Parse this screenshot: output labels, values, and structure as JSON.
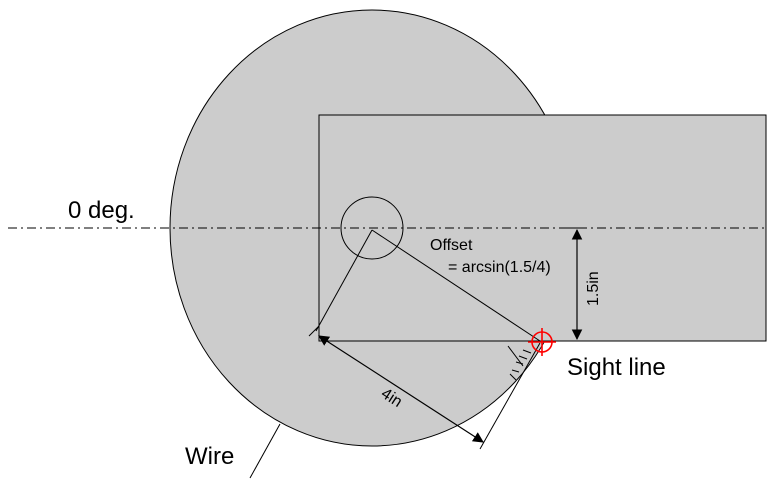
{
  "labels": {
    "zero_deg": "0 deg.",
    "offset_line1": "Offset",
    "offset_line2": "= arcsin(1.5/4)",
    "height_dim": "1.5in",
    "length_dim": "4in",
    "sight_line": "Sight line",
    "wire": "Wire"
  },
  "colors": {
    "disk_fill": "#cccccc",
    "outline": "#000000",
    "crosshair": "#ff0000"
  },
  "icons": {
    "sight_marker": "crosshair-target-icon"
  }
}
